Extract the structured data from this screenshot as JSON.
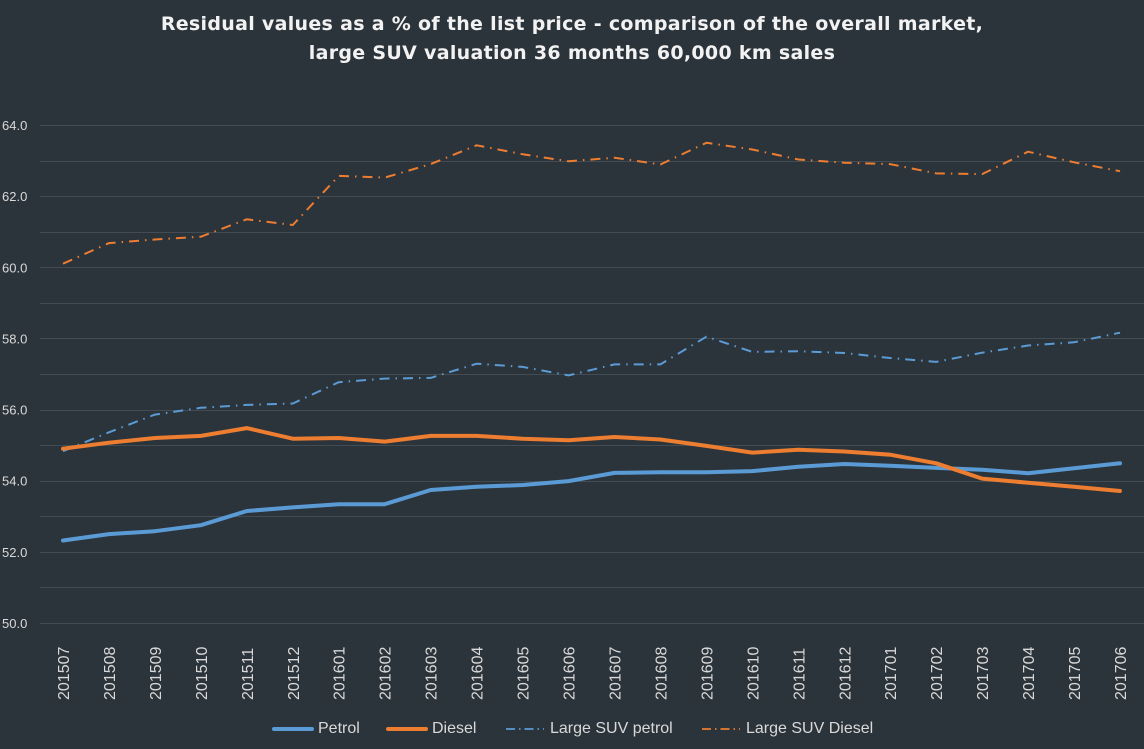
{
  "chart_data": {
    "type": "line",
    "title": "Residual values as a % of the list price - comparison of the overall market,",
    "subtitle": "large SUV valuation 36 months 60,000 km sales",
    "xlabel": "",
    "ylabel": "",
    "ylim": [
      50.0,
      64.0
    ],
    "y_ticks": [
      "50.0",
      "52.0",
      "54.0",
      "56.0",
      "58.0",
      "60.0",
      "62.0",
      "64.0"
    ],
    "y_tick_values": [
      50,
      52,
      54,
      56,
      58,
      60,
      62,
      64
    ],
    "y_minor_grid_step": 1.0,
    "grid": true,
    "legend_position": "bottom",
    "categories": [
      "201507",
      "201508",
      "201509",
      "201510",
      "201511",
      "201512",
      "201601",
      "201602",
      "201603",
      "201604",
      "201605",
      "201606",
      "201607",
      "201608",
      "201609",
      "201610",
      "201611",
      "201612",
      "201701",
      "201702",
      "201703",
      "201704",
      "201705",
      "201706"
    ],
    "series": [
      {
        "name": "Petrol",
        "color": "#5b9bd5",
        "style": "solid",
        "values": [
          52.32,
          52.5,
          52.58,
          52.75,
          53.15,
          53.25,
          53.34,
          53.34,
          53.74,
          53.83,
          53.88,
          53.99,
          54.22,
          54.24,
          54.24,
          54.27,
          54.39,
          54.47,
          54.42,
          54.36,
          54.31,
          54.21,
          54.35,
          54.49
        ]
      },
      {
        "name": "Diesel",
        "color": "#ed7d31",
        "style": "solid",
        "values": [
          54.9,
          55.07,
          55.2,
          55.26,
          55.48,
          55.18,
          55.2,
          55.1,
          55.26,
          55.26,
          55.18,
          55.14,
          55.23,
          55.16,
          54.98,
          54.79,
          54.87,
          54.82,
          54.73,
          54.49,
          54.06,
          53.94,
          53.83,
          53.71
        ]
      },
      {
        "name": "Large SUV petrol",
        "color": "#5b9bd5",
        "style": "dash-dot",
        "values": [
          54.83,
          55.36,
          55.86,
          56.05,
          56.13,
          56.17,
          56.77,
          56.87,
          56.89,
          57.29,
          57.2,
          56.96,
          57.27,
          57.27,
          58.05,
          57.62,
          57.64,
          57.59,
          57.45,
          57.34,
          57.6,
          57.8,
          57.89,
          58.16
        ]
      },
      {
        "name": "Large SUV Diesel",
        "color": "#ed7d31",
        "style": "dash-dot",
        "values": [
          60.1,
          60.68,
          60.78,
          60.86,
          61.35,
          61.19,
          62.57,
          62.52,
          62.9,
          63.43,
          63.18,
          62.98,
          63.08,
          62.89,
          63.5,
          63.31,
          63.03,
          62.94,
          62.9,
          62.64,
          62.62,
          63.25,
          62.95,
          62.7
        ]
      }
    ]
  },
  "colors": {
    "background": "#2c343b",
    "grid": "#434c53",
    "text": "#d9d9d9",
    "title": "#f2f2f2"
  }
}
